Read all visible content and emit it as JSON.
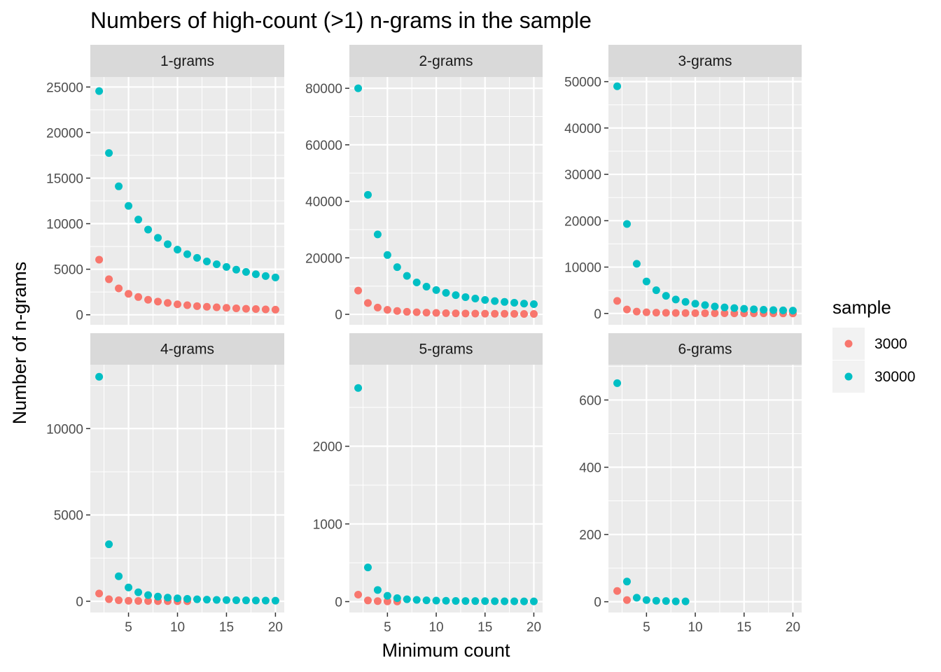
{
  "chart_data": {
    "type": "scatter",
    "title": "Numbers of high-count (>1) n-grams in the sample",
    "xlabel": "Minimum count",
    "ylabel": "Number of n-grams",
    "legend": {
      "title": "sample",
      "position": "right"
    },
    "grid": true,
    "series_colors": {
      "3000": "#F8766D",
      "30000": "#00BFC4"
    },
    "xlim": [
      1.1,
      20.9
    ],
    "x_ticks": [
      5,
      10,
      15,
      20
    ],
    "panels": [
      {
        "name": "1-grams",
        "ylim": [
          -1100,
          26100
        ],
        "y_ticks": [
          0,
          5000,
          10000,
          15000,
          20000,
          25000
        ],
        "series": [
          {
            "name": "3000",
            "x": [
              2,
              3,
              4,
              5,
              6,
              7,
              8,
              9,
              10,
              11,
              12,
              13,
              14,
              15,
              16,
              17,
              18,
              19,
              20
            ],
            "y": [
              6050,
              3900,
              2900,
              2300,
              1950,
              1650,
              1450,
              1300,
              1150,
              1050,
              950,
              880,
              820,
              760,
              710,
              660,
              630,
              590,
              560
            ]
          },
          {
            "name": "30000",
            "x": [
              2,
              3,
              4,
              5,
              6,
              7,
              8,
              9,
              10,
              11,
              12,
              13,
              14,
              15,
              16,
              17,
              18,
              19,
              20
            ],
            "y": [
              24550,
              17750,
              14100,
              11950,
              10450,
              9350,
              8450,
              7750,
              7150,
              6650,
              6250,
              5850,
              5550,
              5250,
              4950,
              4700,
              4450,
              4250,
              4100
            ]
          }
        ]
      },
      {
        "name": "2-grams",
        "ylim": [
          -3700,
          84000
        ],
        "y_ticks": [
          0,
          20000,
          40000,
          60000,
          80000
        ],
        "series": [
          {
            "name": "3000",
            "x": [
              2,
              3,
              4,
              5,
              6,
              7,
              8,
              9,
              10,
              11,
              12,
              13,
              14,
              15,
              16,
              17,
              18,
              19,
              20
            ],
            "y": [
              8400,
              4000,
              2400,
              1600,
              1200,
              900,
              750,
              600,
              500,
              420,
              360,
              310,
              270,
              240,
              210,
              190,
              170,
              150,
              140
            ]
          },
          {
            "name": "30000",
            "x": [
              2,
              3,
              4,
              5,
              6,
              7,
              8,
              9,
              10,
              11,
              12,
              13,
              14,
              15,
              16,
              17,
              18,
              19,
              20
            ],
            "y": [
              80000,
              42300,
              28300,
              21000,
              16700,
              13600,
              11300,
              9800,
              8600,
              7600,
              6800,
              6100,
              5600,
              5100,
              4700,
              4400,
              4100,
              3800,
              3600
            ]
          }
        ]
      },
      {
        "name": "3-grams",
        "ylim": [
          -2450,
          51000
        ],
        "y_ticks": [
          0,
          10000,
          20000,
          30000,
          40000,
          50000
        ],
        "series": [
          {
            "name": "3000",
            "x": [
              2,
              3,
              4,
              5,
              6,
              7,
              8,
              9,
              10,
              11,
              12,
              13,
              14,
              15,
              16,
              17,
              18,
              19,
              20
            ],
            "y": [
              2700,
              850,
              400,
              250,
              170,
              130,
              100,
              80,
              60,
              50,
              40,
              35,
              30,
              25,
              22,
              20,
              18,
              15,
              12
            ]
          },
          {
            "name": "30000",
            "x": [
              2,
              3,
              4,
              5,
              6,
              7,
              8,
              9,
              10,
              11,
              12,
              13,
              14,
              15,
              16,
              17,
              18,
              19,
              20
            ],
            "y": [
              49000,
              19300,
              10700,
              6900,
              5000,
              3800,
              3000,
              2500,
              2100,
              1800,
              1500,
              1300,
              1150,
              1000,
              900,
              800,
              730,
              670,
              610
            ]
          }
        ]
      },
      {
        "name": "4-grams",
        "ylim": [
          -650,
          13700
        ],
        "y_ticks": [
          0,
          5000,
          10000
        ],
        "series": [
          {
            "name": "3000",
            "x": [
              2,
              3,
              4,
              5,
              6,
              7,
              8,
              9,
              10,
              11
            ],
            "y": [
              450,
              120,
              60,
              30,
              20,
              14,
              10,
              8,
              6,
              5
            ]
          },
          {
            "name": "30000",
            "x": [
              2,
              3,
              4,
              5,
              6,
              7,
              8,
              9,
              10,
              11,
              12,
              13,
              14,
              15,
              16,
              17,
              18,
              19,
              20
            ],
            "y": [
              13000,
              3300,
              1450,
              800,
              520,
              360,
              270,
              210,
              170,
              140,
              115,
              95,
              80,
              70,
              60,
              52,
              45,
              40,
              35
            ]
          }
        ]
      },
      {
        "name": "5-grams",
        "ylim": [
          -140,
          3050
        ],
        "y_ticks": [
          0,
          1000,
          2000
        ],
        "series": [
          {
            "name": "3000",
            "x": [
              2,
              3,
              4,
              5,
              6
            ],
            "y": [
              90,
              15,
              6,
              3,
              2
            ]
          },
          {
            "name": "30000",
            "x": [
              2,
              3,
              4,
              5,
              6,
              7,
              8,
              9,
              10,
              11,
              12,
              13,
              14,
              15,
              16,
              17,
              18,
              19,
              20
            ],
            "y": [
              2750,
              440,
              150,
              75,
              45,
              30,
              22,
              17,
              13,
              11,
              9,
              8,
              7,
              6,
              5,
              4,
              4,
              3,
              3
            ]
          }
        ]
      },
      {
        "name": "6-grams",
        "ylim": [
          -32,
          705
        ],
        "y_ticks": [
          0,
          200,
          400,
          600
        ],
        "series": [
          {
            "name": "3000",
            "x": [
              2,
              3
            ],
            "y": [
              32,
              5
            ]
          },
          {
            "name": "30000",
            "x": [
              2,
              3,
              4,
              5,
              6,
              7,
              8,
              9
            ],
            "y": [
              650,
              60,
              12,
              5,
              3,
              2,
              1,
              1
            ]
          }
        ]
      }
    ]
  }
}
